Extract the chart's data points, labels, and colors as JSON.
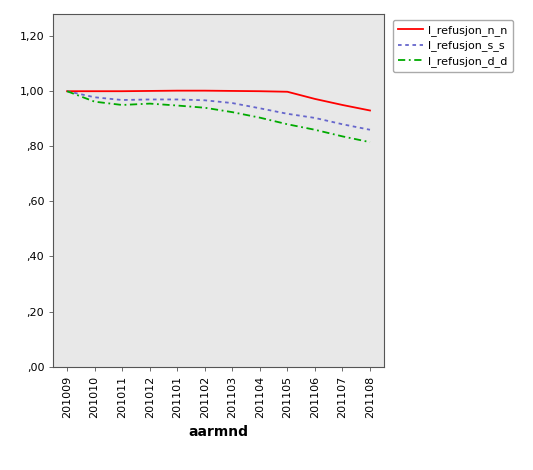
{
  "x_labels": [
    "201009",
    "201010",
    "201011",
    "201012",
    "201101",
    "201102",
    "201103",
    "201104",
    "201105",
    "201106",
    "201107",
    "201108"
  ],
  "l_refusjon_n_n": [
    1.0,
    1.0,
    1.0,
    1.001,
    1.002,
    1.002,
    1.001,
    1.0,
    0.998,
    0.972,
    0.95,
    0.93
  ],
  "l_refusjon_s_s": [
    1.0,
    0.978,
    0.968,
    0.97,
    0.97,
    0.967,
    0.957,
    0.938,
    0.918,
    0.903,
    0.88,
    0.86
  ],
  "l_refusjon_d_d": [
    1.0,
    0.962,
    0.95,
    0.955,
    0.948,
    0.94,
    0.924,
    0.904,
    0.88,
    0.86,
    0.836,
    0.815
  ],
  "legend_labels": [
    "l_refusjon_n_n",
    "l_refusjon_s_s",
    "l_refusjon_d_d"
  ],
  "line_colors": [
    "#ff0000",
    "#6666cc",
    "#00aa00"
  ],
  "line_styles": [
    "-",
    "dotted",
    "dashdot"
  ],
  "xlabel": "aarmnd",
  "ylim": [
    0.0,
    1.28
  ],
  "yticks": [
    0.0,
    0.2,
    0.4,
    0.6,
    0.8,
    1.0,
    1.2
  ],
  "ytick_labels": [
    ",00",
    ",20",
    ",40",
    ",60",
    ",80",
    "1,00",
    "1,20"
  ],
  "background_color": "#ffffff",
  "plot_bg_color": "#e8e8e8",
  "legend_fontsize": 8,
  "tick_fontsize": 8,
  "xlabel_fontsize": 10
}
